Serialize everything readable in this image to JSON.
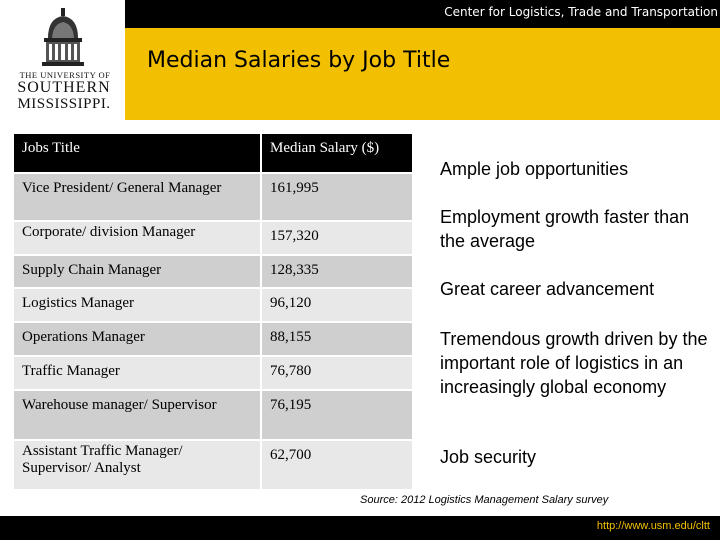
{
  "header": {
    "org_name": "Center for Logistics, Trade and Transportation",
    "title": "Median Salaries by Job Title"
  },
  "logo": {
    "line1": "THE UNIVERSITY OF",
    "line2": "SOUTHERN",
    "line3": "MISSISSIPPI."
  },
  "table": {
    "headers": [
      "Jobs Title",
      "Median Salary ($)"
    ],
    "rows": [
      {
        "title": "Vice President/ General Manager",
        "salary": "161,995"
      },
      {
        "title": "Corporate/ division Manager",
        "salary": "157,320"
      },
      {
        "title": "Supply Chain Manager",
        "salary": "128,335"
      },
      {
        "title": "Logistics Manager",
        "salary": "96,120"
      },
      {
        "title": "Operations Manager",
        "salary": "88,155"
      },
      {
        "title": "Traffic Manager",
        "salary": "76,780"
      },
      {
        "title": "Warehouse manager/ Supervisor",
        "salary": "76,195"
      },
      {
        "title": "Assistant Traffic Manager/ Supervisor/ Analyst",
        "salary": "62,700"
      }
    ]
  },
  "bullets": [
    "Ample job opportunities",
    "Employment growth faster than the average",
    "Great career advancement",
    "Tremendous growth driven by the important role of logistics in an increasingly global economy",
    "Job security"
  ],
  "source": "Source: 2012 Logistics Management Salary survey",
  "footer_url": "http://www.usm.edu/cltt",
  "colors": {
    "accent": "#f2c000",
    "background": "#000000"
  }
}
